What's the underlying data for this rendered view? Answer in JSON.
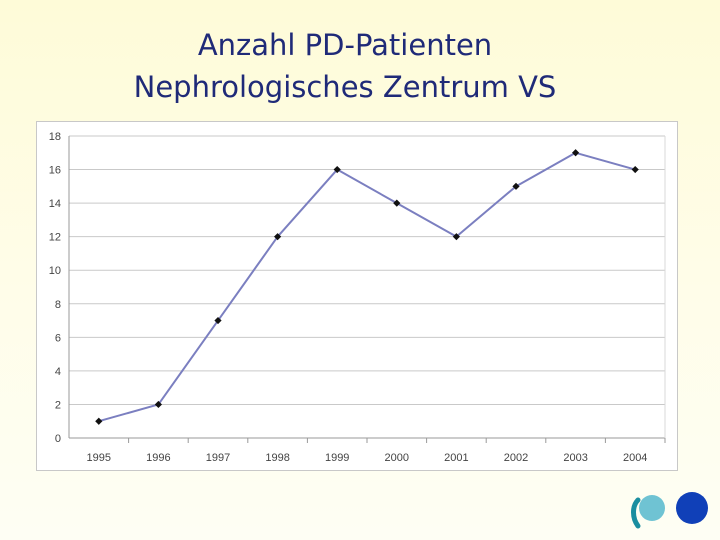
{
  "slide": {
    "title_line1": "Anzahl PD-Patienten",
    "title_line2": "Nephrologisches Zentrum VS"
  },
  "logo": {
    "icon": "clinic-logo-icon",
    "colors": [
      "#1a8ea0",
      "#6fc3d3",
      "#1040b8"
    ]
  },
  "chart_data": {
    "type": "line",
    "title": "",
    "xlabel": "",
    "ylabel": "",
    "categories": [
      "1995",
      "1996",
      "1997",
      "1998",
      "1999",
      "2000",
      "2001",
      "2002",
      "2003",
      "2004"
    ],
    "series": [
      {
        "values": [
          1,
          2,
          7,
          12,
          16,
          14,
          12,
          15,
          17,
          16
        ],
        "line_color": "#7b7fc0",
        "marker_color": "#111111"
      }
    ],
    "ylim": [
      0,
      18
    ],
    "yticks": [
      0,
      2,
      4,
      6,
      8,
      10,
      12,
      14,
      16,
      18
    ],
    "grid": true,
    "legend": "none"
  }
}
